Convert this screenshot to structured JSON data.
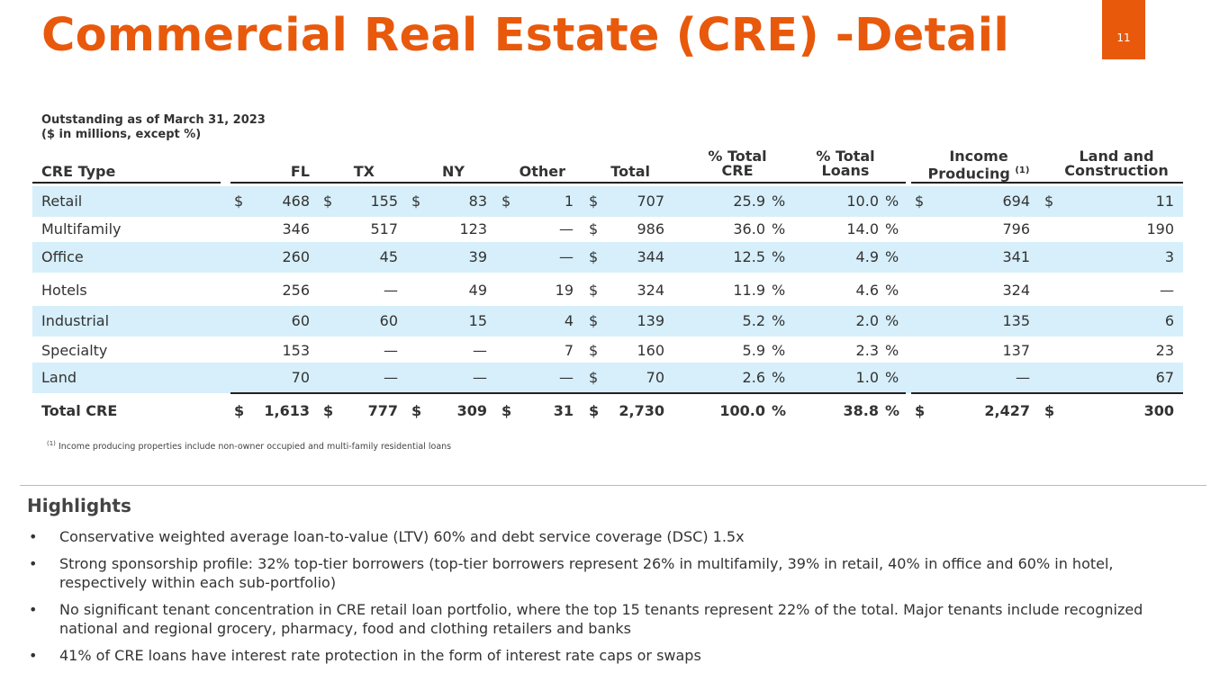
{
  "title": "Commercial Real Estate (CRE) -Detail",
  "page_number": "11",
  "subtitle": {
    "line1": "Outstanding as of March 31, 2023",
    "line2": "($ in millions, except %)"
  },
  "table": {
    "headers": {
      "cre_type": "CRE Type",
      "fl": "FL",
      "tx": "TX",
      "ny": "NY",
      "other": "Other",
      "total": "Total",
      "pct_cre_1": "% Total",
      "pct_cre_2": "CRE",
      "pct_loans_1": "% Total",
      "pct_loans_2": "Loans",
      "income_1": "Income",
      "income_2": "Producing",
      "income_sup": "(1)",
      "land_1": "Land and",
      "land_2": "Construction"
    },
    "rows": [
      {
        "type": "Retail",
        "fl_sym": "$",
        "fl": "468",
        "tx_sym": "$",
        "tx": "155",
        "ny_sym": "$",
        "ny": "83",
        "other_sym": "$",
        "other": "1",
        "total_sym": "$",
        "total": "707",
        "pct_cre": "25.9",
        "pct_sym1": "%",
        "pct_loans": "10.0",
        "pct_sym2": "%",
        "inc_sym": "$",
        "income": "694",
        "land_sym": "$",
        "land": "11"
      },
      {
        "type": "Multifamily",
        "fl_sym": "",
        "fl": "346",
        "tx_sym": "",
        "tx": "517",
        "ny_sym": "",
        "ny": "123",
        "other_sym": "",
        "other": "—",
        "total_sym": "$",
        "total": "986",
        "pct_cre": "36.0",
        "pct_sym1": "%",
        "pct_loans": "14.0",
        "pct_sym2": "%",
        "inc_sym": "",
        "income": "796",
        "land_sym": "",
        "land": "190"
      },
      {
        "type": "Office",
        "fl_sym": "",
        "fl": "260",
        "tx_sym": "",
        "tx": "45",
        "ny_sym": "",
        "ny": "39",
        "other_sym": "",
        "other": "—",
        "total_sym": "$",
        "total": "344",
        "pct_cre": "12.5",
        "pct_sym1": "%",
        "pct_loans": "4.9",
        "pct_sym2": "%",
        "inc_sym": "",
        "income": "341",
        "land_sym": "",
        "land": "3"
      },
      {
        "type": "Hotels",
        "fl_sym": "",
        "fl": "256",
        "tx_sym": "",
        "tx": "—",
        "ny_sym": "",
        "ny": "49",
        "other_sym": "",
        "other": "19",
        "total_sym": "$",
        "total": "324",
        "pct_cre": "11.9",
        "pct_sym1": "%",
        "pct_loans": "4.6",
        "pct_sym2": "%",
        "inc_sym": "",
        "income": "324",
        "land_sym": "",
        "land": "—"
      },
      {
        "type": "Industrial",
        "fl_sym": "",
        "fl": "60",
        "tx_sym": "",
        "tx": "60",
        "ny_sym": "",
        "ny": "15",
        "other_sym": "",
        "other": "4",
        "total_sym": "$",
        "total": "139",
        "pct_cre": "5.2",
        "pct_sym1": "%",
        "pct_loans": "2.0",
        "pct_sym2": "%",
        "inc_sym": "",
        "income": "135",
        "land_sym": "",
        "land": "6"
      },
      {
        "type": "Specialty",
        "fl_sym": "",
        "fl": "153",
        "tx_sym": "",
        "tx": "—",
        "ny_sym": "",
        "ny": "—",
        "other_sym": "",
        "other": "7",
        "total_sym": "$",
        "total": "160",
        "pct_cre": "5.9",
        "pct_sym1": "%",
        "pct_loans": "2.3",
        "pct_sym2": "%",
        "inc_sym": "",
        "income": "137",
        "land_sym": "",
        "land": "23"
      },
      {
        "type": "Land",
        "fl_sym": "",
        "fl": "70",
        "tx_sym": "",
        "tx": "—",
        "ny_sym": "",
        "ny": "—",
        "other_sym": "",
        "other": "—",
        "total_sym": "$",
        "total": "70",
        "pct_cre": "2.6",
        "pct_sym1": "%",
        "pct_loans": "1.0",
        "pct_sym2": "%",
        "inc_sym": "",
        "income": "—",
        "land_sym": "",
        "land": "67"
      }
    ],
    "total_row": {
      "type": "Total CRE",
      "fl_sym": "$",
      "fl": "1,613",
      "tx_sym": "$",
      "tx": "777",
      "ny_sym": "$",
      "ny": "309",
      "other_sym": "$",
      "other": "31",
      "total_sym": "$",
      "total": "2,730",
      "pct_cre": "100.0",
      "pct_sym1": "%",
      "pct_loans": "38.8",
      "pct_sym2": "%",
      "inc_sym": "$",
      "income": "2,427",
      "land_sym": "$",
      "land": "300"
    }
  },
  "footnote": {
    "marker": "(1)",
    "text": "Income producing properties include non-owner occupied and multi-family residential loans"
  },
  "highlights": {
    "title": "Highlights",
    "bullet_char": "•",
    "items": [
      "Conservative weighted average loan-to-value (LTV) 60% and debt service coverage (DSC) 1.5x",
      "Strong sponsorship profile: 32% top-tier borrowers (top-tier borrowers represent 26% in multifamily, 39% in retail, 40% in office and 60% in hotel, respectively within each sub-portfolio)",
      "No significant tenant concentration in CRE retail loan portfolio, where the top 15 tenants represent 22% of the total. Major tenants include recognized national and regional grocery, pharmacy, food and clothing retailers and banks",
      "41% of CRE loans have interest rate protection in the form of interest rate caps or swaps"
    ]
  },
  "colors": {
    "accent": "#e8590c",
    "row_shade": "#d6effa"
  }
}
